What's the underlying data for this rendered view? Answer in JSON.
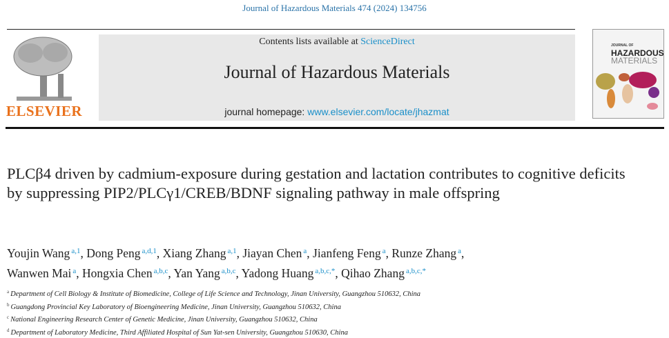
{
  "citation": "Journal of Hazardous Materials 474 (2024) 134756",
  "banner": {
    "contents_prefix": "Contents lists available at ",
    "contents_link": "ScienceDirect",
    "journal_title": "Journal of Hazardous Materials",
    "homepage_prefix": "journal homepage: ",
    "homepage_link": "www.elsevier.com/locate/jhazmat"
  },
  "publisher_logo": "ELSEVIER",
  "cover": {
    "line1": "JOURNAL OF",
    "line2": "HAZARDOUS",
    "line3": "MATERIALS"
  },
  "title": "PLCβ4 driven by cadmium-exposure during gestation and lactation contributes to cognitive deficits by suppressing PIP2/PLCγ1/CREB/BDNF signaling pathway in male offspring",
  "authors": [
    {
      "name": "Youjin Wang",
      "sup": "a,1"
    },
    {
      "name": "Dong Peng",
      "sup": "a,d,1"
    },
    {
      "name": "Xiang Zhang",
      "sup": "a,1"
    },
    {
      "name": "Jiayan Chen",
      "sup": "a"
    },
    {
      "name": "Jianfeng Feng",
      "sup": "a"
    },
    {
      "name": "Runze Zhang",
      "sup": "a"
    },
    {
      "name": "Wanwen Mai",
      "sup": "a"
    },
    {
      "name": "Hongxia Chen",
      "sup": "a,b,c"
    },
    {
      "name": "Yan Yang",
      "sup": "a,b,c"
    },
    {
      "name": "Yadong Huang",
      "sup": "a,b,c,*"
    },
    {
      "name": "Qihao Zhang",
      "sup": "a,b,c,*"
    }
  ],
  "affiliations": [
    {
      "key": "a",
      "text": "Department of Cell Biology & Institute of Biomedicine, College of Life Science and Technology, Jinan University, Guangzhou 510632, China"
    },
    {
      "key": "b",
      "text": "Guangdong Provincial Key Laboratory of Bioengineering Medicine, Jinan University, Guangzhou 510632, China"
    },
    {
      "key": "c",
      "text": "National Engineering Research Center of Genetic Medicine, Jinan University, Guangzhou 510632, China"
    },
    {
      "key": "d",
      "text": "Department of Laboratory Medicine, Third Affiliated Hospital of Sun Yat-sen University, Guangzhou 510630, China"
    }
  ]
}
